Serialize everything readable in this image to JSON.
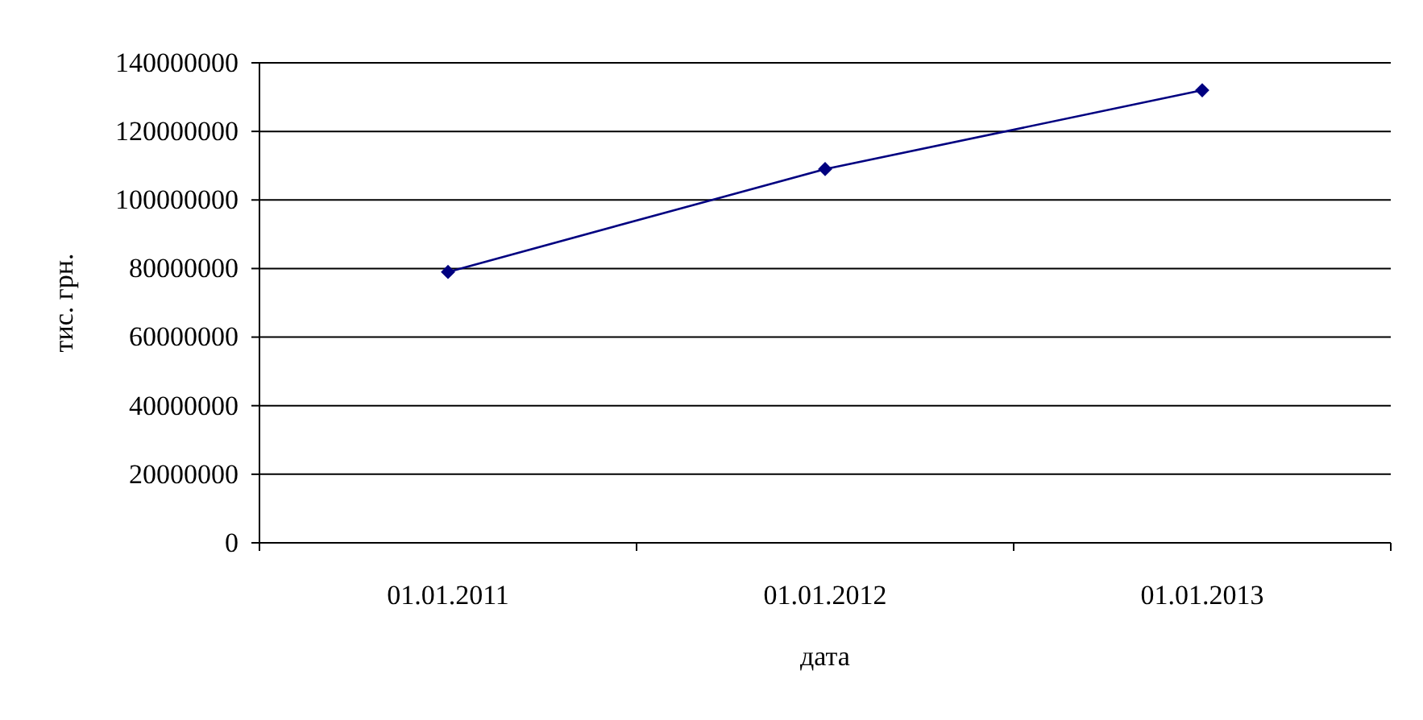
{
  "chart_data": {
    "type": "line",
    "xlabel": "дата",
    "ylabel": "тис. грн.",
    "categories": [
      "01.01.2011",
      "01.01.2012",
      "01.01.2013"
    ],
    "series": [
      {
        "color": "#000080",
        "values": [
          79000000,
          109000000,
          132000000
        ]
      }
    ],
    "ylim": [
      0,
      140000000
    ],
    "yticks": [
      0,
      20000000,
      40000000,
      60000000,
      80000000,
      100000000,
      120000000,
      140000000
    ],
    "grid": "y",
    "marker": "diamond",
    "line_style": "solid"
  }
}
